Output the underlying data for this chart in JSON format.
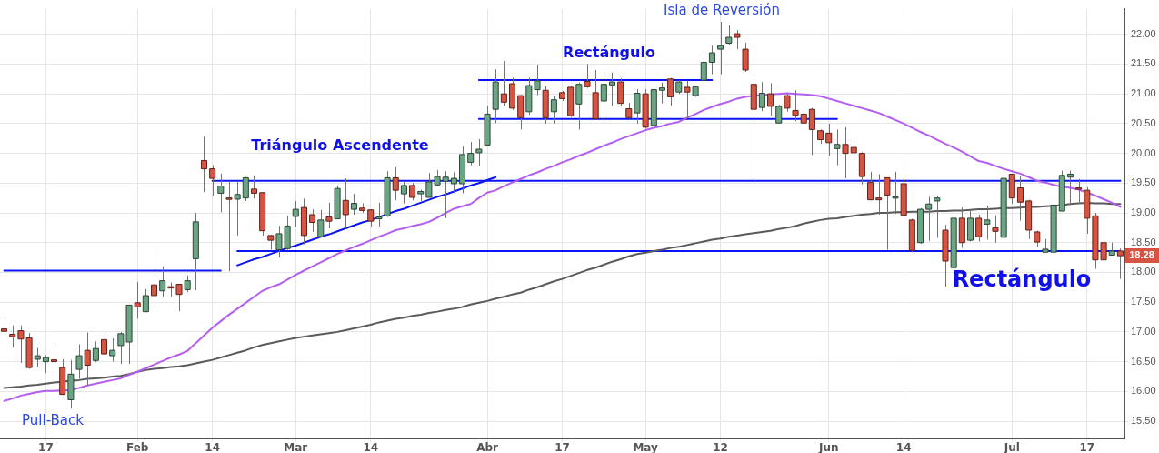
{
  "chart_data": {
    "type": "candlestick",
    "categories": [
      null,
      null,
      null,
      null,
      null,
      "17",
      null,
      null,
      null,
      null,
      null,
      null,
      null,
      null,
      null,
      null,
      "Feb",
      null,
      null,
      null,
      null,
      null,
      null,
      null,
      null,
      "14",
      null,
      null,
      null,
      null,
      null,
      null,
      null,
      null,
      null,
      "Mar",
      null,
      null,
      null,
      null,
      null,
      null,
      null,
      null,
      "14",
      null,
      null,
      null,
      null,
      null,
      null,
      null,
      null,
      null,
      null,
      null,
      null,
      null,
      "Abr",
      null,
      null,
      null,
      null,
      null,
      null,
      null,
      null,
      "17",
      null,
      null,
      null,
      null,
      null,
      null,
      null,
      null,
      null,
      "May",
      null,
      null,
      null,
      null,
      null,
      null,
      null,
      null,
      "12",
      null,
      null,
      null,
      null,
      null,
      null,
      null,
      null,
      null,
      null,
      null,
      null,
      "Jun",
      null,
      null,
      null,
      null,
      null,
      null,
      null,
      null,
      "14",
      null,
      null,
      null,
      null,
      null,
      null,
      null,
      null,
      null,
      null,
      null,
      null,
      "Jul",
      null,
      null,
      null,
      null,
      null,
      null,
      null,
      null,
      "17",
      null,
      null,
      null,
      null
    ],
    "ohlc": [
      [
        17.05,
        17.24,
        16.99,
        17.01
      ],
      [
        16.96,
        17.11,
        16.74,
        16.92
      ],
      [
        17.02,
        17.11,
        16.48,
        16.88
      ],
      [
        16.9,
        16.98,
        16.38,
        16.4
      ],
      [
        16.54,
        16.73,
        16.41,
        16.6
      ],
      [
        16.5,
        16.61,
        16.31,
        16.57
      ],
      [
        16.53,
        16.81,
        16.31,
        16.5
      ],
      [
        16.4,
        16.54,
        15.94,
        15.95
      ],
      [
        15.86,
        16.53,
        15.72,
        16.29
      ],
      [
        16.37,
        16.79,
        16.21,
        16.6
      ],
      [
        16.69,
        16.99,
        16.1,
        16.44
      ],
      [
        16.52,
        16.84,
        16.49,
        16.72
      ],
      [
        16.87,
        16.97,
        16.6,
        16.63
      ],
      [
        16.6,
        16.89,
        16.5,
        16.69
      ],
      [
        16.77,
        17.0,
        16.46,
        16.97
      ],
      [
        16.83,
        17.46,
        16.46,
        17.45
      ],
      [
        17.49,
        17.84,
        17.22,
        17.42
      ],
      [
        17.34,
        17.72,
        17.33,
        17.61
      ],
      [
        17.79,
        18.36,
        17.42,
        17.61
      ],
      [
        17.69,
        18.1,
        17.59,
        17.86
      ],
      [
        17.76,
        17.83,
        17.59,
        17.75
      ],
      [
        17.8,
        17.81,
        17.35,
        17.63
      ],
      [
        17.71,
        17.95,
        17.67,
        17.86
      ],
      [
        18.23,
        19.0,
        17.7,
        18.85
      ],
      [
        19.88,
        20.28,
        19.35,
        19.74
      ],
      [
        19.74,
        19.8,
        19.29,
        19.58
      ],
      [
        19.33,
        19.66,
        19.01,
        19.45
      ],
      [
        19.25,
        19.53,
        18.02,
        19.23
      ],
      [
        19.23,
        19.53,
        18.62,
        19.31
      ],
      [
        19.25,
        19.6,
        19.2,
        19.59
      ],
      [
        19.4,
        19.63,
        19.24,
        19.33
      ],
      [
        19.34,
        19.35,
        18.62,
        18.7
      ],
      [
        18.62,
        18.63,
        18.38,
        18.54
      ],
      [
        18.38,
        18.78,
        18.25,
        18.65
      ],
      [
        18.4,
        18.95,
        18.38,
        18.78
      ],
      [
        18.94,
        19.2,
        18.77,
        19.06
      ],
      [
        19.09,
        19.24,
        18.47,
        18.62
      ],
      [
        18.97,
        19.06,
        18.68,
        18.84
      ],
      [
        18.6,
        19.05,
        18.6,
        18.88
      ],
      [
        18.93,
        19.17,
        18.74,
        18.86
      ],
      [
        18.9,
        19.46,
        18.9,
        19.41
      ],
      [
        19.21,
        19.58,
        18.74,
        18.97
      ],
      [
        19.06,
        19.32,
        18.97,
        19.16
      ],
      [
        19.08,
        19.16,
        19.0,
        19.04
      ],
      [
        19.05,
        19.06,
        18.77,
        18.86
      ],
      [
        18.9,
        19.17,
        18.77,
        18.93
      ],
      [
        18.95,
        19.7,
        18.93,
        19.59
      ],
      [
        19.59,
        19.77,
        19.21,
        19.38
      ],
      [
        19.32,
        19.52,
        19.16,
        19.46
      ],
      [
        19.46,
        19.5,
        19.21,
        19.26
      ],
      [
        19.32,
        19.39,
        19.2,
        19.36
      ],
      [
        19.26,
        19.67,
        19.26,
        19.52
      ],
      [
        19.47,
        19.72,
        19.45,
        19.61
      ],
      [
        19.53,
        19.7,
        18.91,
        19.6
      ],
      [
        19.49,
        19.68,
        19.33,
        19.58
      ],
      [
        19.49,
        20.12,
        19.33,
        19.98
      ],
      [
        19.85,
        20.19,
        19.8,
        20.0
      ],
      [
        20.01,
        20.24,
        19.79,
        20.07
      ],
      [
        20.14,
        20.8,
        20.14,
        20.66
      ],
      [
        20.74,
        21.41,
        20.51,
        21.2
      ],
      [
        21.0,
        21.55,
        20.8,
        20.86
      ],
      [
        21.17,
        21.27,
        20.73,
        20.76
      ],
      [
        20.97,
        20.98,
        20.4,
        20.6
      ],
      [
        20.7,
        21.27,
        20.65,
        21.14
      ],
      [
        21.07,
        21.49,
        20.98,
        21.22
      ],
      [
        21.06,
        21.13,
        20.5,
        20.6
      ],
      [
        20.7,
        20.97,
        20.5,
        20.9
      ],
      [
        21.02,
        21.05,
        20.88,
        20.92
      ],
      [
        21.11,
        21.14,
        20.61,
        20.63
      ],
      [
        20.83,
        21.19,
        20.4,
        21.16
      ],
      [
        21.21,
        21.5,
        21.1,
        21.12
      ],
      [
        21.02,
        21.4,
        20.58,
        20.58
      ],
      [
        20.88,
        21.36,
        20.58,
        21.16
      ],
      [
        21.15,
        21.36,
        20.8,
        21.2
      ],
      [
        21.2,
        21.26,
        20.8,
        20.84
      ],
      [
        20.75,
        20.85,
        20.58,
        20.6
      ],
      [
        20.68,
        21.08,
        20.5,
        21.01
      ],
      [
        21.0,
        21.08,
        20.42,
        20.44
      ],
      [
        20.47,
        21.1,
        20.34,
        21.07
      ],
      [
        21.06,
        21.19,
        20.84,
        21.1
      ],
      [
        21.25,
        21.27,
        20.8,
        20.95
      ],
      [
        21.03,
        21.23,
        21.0,
        21.2
      ],
      [
        21.11,
        21.22,
        20.59,
        21.03
      ],
      [
        20.97,
        21.14,
        20.95,
        21.12
      ],
      [
        21.23,
        21.62,
        21.22,
        21.53
      ],
      [
        21.53,
        21.81,
        21.33,
        21.69
      ],
      [
        21.75,
        22.21,
        21.33,
        21.81
      ],
      [
        21.85,
        22.15,
        21.82,
        21.95
      ],
      [
        22.01,
        22.07,
        21.75,
        21.95
      ],
      [
        21.75,
        21.86,
        21.37,
        21.4
      ],
      [
        21.16,
        21.24,
        19.54,
        20.74
      ],
      [
        20.77,
        21.2,
        20.71,
        21.01
      ],
      [
        21.0,
        21.18,
        20.63,
        20.79
      ],
      [
        20.51,
        20.82,
        20.51,
        20.79
      ],
      [
        20.97,
        21.0,
        20.7,
        20.76
      ],
      [
        20.72,
        21.06,
        20.54,
        20.64
      ],
      [
        20.66,
        20.82,
        20.51,
        20.51
      ],
      [
        20.74,
        20.76,
        19.97,
        20.4
      ],
      [
        20.38,
        20.4,
        20.16,
        20.23
      ],
      [
        20.34,
        20.5,
        19.96,
        20.18
      ],
      [
        20.08,
        20.4,
        19.8,
        20.15
      ],
      [
        20.15,
        20.44,
        19.58,
        20.0
      ],
      [
        20.1,
        20.14,
        19.74,
        20.01
      ],
      [
        20.0,
        20.02,
        19.48,
        19.61
      ],
      [
        19.51,
        19.69,
        19.21,
        19.22
      ],
      [
        19.25,
        19.65,
        18.97,
        19.22
      ],
      [
        19.59,
        19.59,
        18.38,
        19.3
      ],
      [
        19.25,
        19.69,
        18.98,
        19.27
      ],
      [
        19.49,
        19.8,
        18.59,
        18.96
      ],
      [
        18.88,
        18.9,
        18.34,
        18.37
      ],
      [
        18.5,
        19.08,
        18.48,
        19.06
      ],
      [
        19.06,
        19.27,
        18.53,
        19.15
      ],
      [
        19.2,
        19.29,
        18.58,
        19.25
      ],
      [
        18.71,
        18.8,
        17.76,
        18.19
      ],
      [
        18.08,
        18.93,
        18.06,
        18.91
      ],
      [
        18.91,
        19.09,
        18.41,
        18.5
      ],
      [
        18.54,
        19.06,
        18.52,
        18.91
      ],
      [
        18.91,
        18.97,
        18.52,
        18.6
      ],
      [
        18.81,
        19.12,
        18.55,
        18.88
      ],
      [
        18.75,
        18.96,
        18.5,
        18.69
      ],
      [
        18.59,
        19.65,
        18.58,
        19.58
      ],
      [
        19.65,
        19.66,
        19.15,
        19.25
      ],
      [
        19.42,
        19.61,
        18.87,
        19.18
      ],
      [
        19.2,
        19.22,
        18.56,
        18.71
      ],
      [
        18.68,
        18.7,
        18.42,
        18.51
      ],
      [
        18.34,
        18.56,
        18.34,
        18.39
      ],
      [
        18.34,
        19.18,
        18.34,
        19.13
      ],
      [
        19.03,
        19.71,
        19.03,
        19.63
      ],
      [
        19.6,
        19.71,
        19.13,
        19.65
      ],
      [
        19.42,
        19.57,
        19.15,
        19.4
      ],
      [
        19.38,
        19.43,
        18.65,
        18.91
      ],
      [
        18.95,
        19.0,
        18.06,
        18.21
      ],
      [
        18.5,
        18.79,
        18.0,
        18.21
      ],
      [
        18.29,
        18.5,
        18.29,
        18.36
      ],
      [
        18.36,
        18.4,
        17.89,
        18.28
      ]
    ],
    "colors": [
      "#d75442",
      "#d75442",
      "#d75442",
      "#d75442",
      "#6ba583",
      "#6ba583",
      "#d75442",
      "#d75442",
      "#6ba583",
      "#6ba583",
      "#d75442",
      "#6ba583",
      "#d75442",
      "#6ba583",
      "#6ba583",
      "#6ba583",
      "#d75442",
      "#6ba583",
      "#d75442",
      "#6ba583",
      "#d75442",
      "#d75442",
      "#6ba583",
      "#6ba583",
      "#d75442",
      "#d75442",
      "#6ba583",
      "#d75442",
      "#6ba583",
      "#6ba583",
      "#d75442",
      "#d75442",
      "#d75442",
      "#6ba583",
      "#6ba583",
      "#6ba583",
      "#d75442",
      "#d75442",
      "#6ba583",
      "#d75442",
      "#6ba583",
      "#d75442",
      "#6ba583",
      "#d75442",
      "#d75442",
      "#6ba583",
      "#6ba583",
      "#d75442",
      "#6ba583",
      "#d75442",
      "#6ba583",
      "#6ba583",
      "#6ba583",
      "#6ba583",
      "#6ba583",
      "#6ba583",
      "#6ba583",
      "#6ba583",
      "#6ba583",
      "#6ba583",
      "#d75442",
      "#d75442",
      "#d75442",
      "#6ba583",
      "#6ba583",
      "#d75442",
      "#6ba583",
      "#d75442",
      "#d75442",
      "#6ba583",
      "#d75442",
      "#d75442",
      "#6ba583",
      "#6ba583",
      "#d75442",
      "#d75442",
      "#6ba583",
      "#d75442",
      "#6ba583",
      "#6ba583",
      "#d75442",
      "#6ba583",
      "#d75442",
      "#6ba583",
      "#6ba583",
      "#6ba583",
      "#6ba583",
      "#6ba583",
      "#d75442",
      "#d75442",
      "#d75442",
      "#6ba583",
      "#d75442",
      "#6ba583",
      "#d75442",
      "#d75442",
      "#d75442",
      "#d75442",
      "#d75442",
      "#d75442",
      "#6ba583",
      "#d75442",
      "#d75442",
      "#d75442",
      "#d75442",
      "#d75442",
      "#d75442",
      "#6ba583",
      "#d75442",
      "#d75442",
      "#6ba583",
      "#6ba583",
      "#6ba583",
      "#d75442",
      "#6ba583",
      "#d75442",
      "#6ba583",
      "#d75442",
      "#6ba583",
      "#d75442",
      "#6ba583",
      "#d75442",
      "#d75442",
      "#d75442",
      "#d75442",
      "#6ba583",
      "#6ba583",
      "#6ba583",
      "#6ba583",
      "#d75442",
      "#d75442",
      "#d75442",
      "#d75442",
      "#6ba583",
      "#d75442"
    ],
    "series": [
      {
        "type": "line",
        "color": "#b45ef0",
        "values": [
          15.84,
          15.88,
          15.93,
          15.96,
          15.99,
          16.01,
          16.01,
          16.02,
          16.02,
          16.06,
          16.1,
          16.13,
          16.16,
          16.19,
          16.22,
          16.28,
          16.33,
          16.39,
          16.45,
          16.51,
          16.57,
          16.62,
          16.68,
          16.81,
          16.94,
          17.07,
          17.18,
          17.29,
          17.39,
          17.49,
          17.59,
          17.69,
          17.75,
          17.8,
          17.88,
          17.96,
          18.03,
          18.1,
          18.17,
          18.24,
          18.31,
          18.37,
          18.43,
          18.48,
          18.54,
          18.6,
          18.65,
          18.71,
          18.74,
          18.78,
          18.81,
          18.85,
          18.92,
          19.0,
          19.07,
          19.11,
          19.15,
          19.25,
          19.34,
          19.38,
          19.45,
          19.51,
          19.57,
          19.63,
          19.68,
          19.74,
          19.79,
          19.85,
          19.9,
          19.96,
          20.01,
          20.07,
          20.13,
          20.18,
          20.24,
          20.29,
          20.34,
          20.39,
          20.43,
          20.46,
          20.5,
          20.53,
          20.6,
          20.66,
          20.73,
          20.78,
          20.83,
          20.87,
          20.92,
          20.95,
          20.97,
          20.98,
          20.99,
          21.0,
          21.01,
          21.0,
          20.99,
          20.98,
          20.96,
          20.92,
          20.88,
          20.84,
          20.8,
          20.76,
          20.72,
          20.68,
          20.62,
          20.56,
          20.5,
          20.43,
          20.36,
          20.3,
          20.23,
          20.16,
          20.1,
          20.03,
          19.95,
          19.87,
          19.84,
          19.79,
          19.74,
          19.7,
          19.66,
          19.6,
          19.54,
          19.51,
          19.47,
          19.44,
          19.42,
          19.39,
          19.34,
          19.29,
          19.23,
          19.17,
          19.1
        ]
      },
      {
        "type": "line",
        "color": "#5a5a5a",
        "values": [
          16.06,
          16.07,
          16.08,
          16.1,
          16.11,
          16.13,
          16.15,
          16.16,
          16.18,
          16.19,
          16.21,
          16.22,
          16.23,
          16.25,
          16.26,
          16.29,
          16.33,
          16.36,
          16.38,
          16.39,
          16.41,
          16.42,
          16.44,
          16.47,
          16.5,
          16.53,
          16.57,
          16.61,
          16.65,
          16.69,
          16.74,
          16.78,
          16.81,
          16.84,
          16.87,
          16.9,
          16.92,
          16.94,
          16.96,
          16.98,
          17.0,
          17.03,
          17.06,
          17.09,
          17.12,
          17.16,
          17.19,
          17.22,
          17.24,
          17.27,
          17.29,
          17.32,
          17.34,
          17.37,
          17.39,
          17.42,
          17.46,
          17.49,
          17.52,
          17.56,
          17.59,
          17.63,
          17.66,
          17.71,
          17.75,
          17.8,
          17.85,
          17.89,
          17.94,
          17.99,
          18.04,
          18.08,
          18.13,
          18.18,
          18.22,
          18.27,
          18.31,
          18.33,
          18.36,
          18.38,
          18.41,
          18.43,
          18.46,
          18.49,
          18.52,
          18.55,
          18.57,
          18.6,
          18.62,
          18.64,
          18.66,
          18.68,
          18.7,
          18.73,
          18.75,
          18.78,
          18.82,
          18.85,
          18.88,
          18.9,
          18.91,
          18.93,
          18.95,
          18.97,
          18.98,
          19.0,
          19.0,
          19.01,
          19.01,
          19.02,
          19.02,
          19.02,
          19.03,
          19.03,
          19.04,
          19.04,
          19.05,
          19.06,
          19.06,
          19.07,
          19.08,
          19.08,
          19.09,
          19.1,
          19.1,
          19.11,
          19.12,
          19.13,
          19.15,
          19.16,
          19.17,
          19.16,
          19.16,
          19.15,
          19.15
        ]
      },
      {
        "type": "line",
        "color": "#0a14f5",
        "values": [
          18.03,
          18.03,
          18.03,
          18.03,
          18.03,
          18.03,
          18.03,
          18.03,
          18.03,
          18.03,
          18.03,
          18.03,
          18.03,
          18.03,
          18.03,
          18.03,
          18.03,
          18.03,
          18.03,
          18.03,
          18.03,
          18.03,
          18.03,
          18.03,
          18.03,
          18.03,
          18.03,
          null,
          null,
          null,
          null,
          null,
          null,
          null,
          null,
          null,
          null,
          null,
          null,
          null,
          null,
          null,
          null,
          null,
          null,
          null,
          null,
          null,
          null,
          null,
          null,
          null,
          null,
          null,
          null,
          null,
          null,
          null,
          null,
          null,
          null,
          null,
          null,
          null,
          null,
          null,
          null,
          null,
          null,
          null,
          null,
          null,
          null,
          null,
          null,
          null,
          null,
          null,
          null,
          null,
          null,
          null,
          null,
          null,
          null,
          null,
          null,
          null,
          null,
          null,
          null,
          null,
          null,
          null,
          null,
          null,
          null,
          null,
          null,
          null,
          null,
          null,
          null,
          null,
          null,
          null,
          null,
          null,
          null,
          null,
          null,
          null,
          null,
          null,
          null,
          null,
          null,
          null,
          null,
          null,
          null,
          null,
          null,
          null,
          null,
          null,
          null,
          null,
          null,
          null,
          null,
          null,
          null,
          null,
          null
        ]
      },
      {
        "type": "line",
        "color": "#0a14f5",
        "values": [
          null,
          null,
          null,
          null,
          null,
          null,
          null,
          null,
          null,
          null,
          null,
          null,
          null,
          null,
          null,
          null,
          null,
          null,
          null,
          null,
          null,
          null,
          null,
          null,
          null,
          19.54,
          19.54,
          19.54,
          19.54,
          19.54,
          19.54,
          19.54,
          19.54,
          19.54,
          19.54,
          19.54,
          19.54,
          19.54,
          19.54,
          19.54,
          19.54,
          19.54,
          19.54,
          19.54,
          19.54,
          19.54,
          19.54,
          19.54,
          19.54,
          19.54,
          19.54,
          19.54,
          19.54,
          19.54,
          19.54,
          19.54,
          19.54,
          19.54,
          19.54,
          19.54,
          19.54,
          19.54,
          19.54,
          19.54,
          19.54,
          19.54,
          19.54,
          19.54,
          19.54,
          19.54,
          19.54,
          19.54,
          19.54,
          19.54,
          19.54,
          19.54,
          19.54,
          19.54,
          19.54,
          19.54,
          19.54,
          19.54,
          19.54,
          19.54,
          19.54,
          19.54,
          19.54,
          19.54,
          19.54,
          19.54,
          19.54,
          19.54,
          19.54,
          19.54,
          19.54,
          19.54,
          19.54,
          19.54,
          19.54,
          19.54,
          19.54,
          19.54,
          19.54,
          19.54,
          19.54,
          19.54,
          19.54,
          19.54,
          19.54,
          19.54,
          19.54,
          19.54,
          19.54,
          19.54,
          19.54,
          19.54,
          19.54,
          19.54,
          19.54,
          19.54,
          19.54,
          19.54,
          19.54,
          19.54,
          19.54,
          19.54,
          19.54,
          19.54,
          19.54,
          19.54,
          19.54,
          19.54,
          19.54,
          19.54,
          19.54
        ]
      },
      {
        "type": "line",
        "color": "#0a14f5",
        "values": [
          null,
          null,
          null,
          null,
          null,
          null,
          null,
          null,
          null,
          null,
          null,
          null,
          null,
          null,
          null,
          null,
          null,
          null,
          null,
          null,
          null,
          null,
          null,
          null,
          null,
          null,
          null,
          null,
          18.36,
          18.36,
          18.36,
          18.36,
          18.36,
          18.36,
          18.36,
          18.36,
          18.36,
          18.36,
          18.36,
          18.36,
          18.36,
          18.36,
          18.36,
          18.36,
          18.36,
          18.36,
          18.36,
          18.36,
          18.36,
          18.36,
          18.36,
          18.36,
          18.36,
          18.36,
          18.36,
          18.36,
          18.36,
          18.36,
          18.36,
          18.36,
          18.36,
          18.36,
          18.36,
          18.36,
          18.36,
          18.36,
          18.36,
          18.36,
          18.36,
          18.36,
          18.36,
          18.36,
          18.36,
          18.36,
          18.36,
          18.36,
          18.36,
          18.36,
          18.36,
          18.36,
          18.36,
          18.36,
          18.36,
          18.36,
          18.36,
          18.36,
          18.36,
          18.36,
          18.36,
          18.36,
          18.36,
          18.36,
          18.36,
          18.36,
          18.36,
          18.36,
          18.36,
          18.36,
          18.36,
          18.36,
          18.36,
          18.36,
          18.36,
          18.36,
          18.36,
          18.36,
          18.36,
          18.36,
          18.36,
          18.36,
          18.36,
          18.36,
          18.36,
          18.36,
          18.36,
          18.36,
          18.36,
          18.36,
          18.36,
          18.36,
          18.36,
          18.36,
          18.36,
          18.36,
          18.36,
          18.36,
          18.36,
          18.36,
          18.36,
          18.36,
          18.36,
          18.36,
          18.36,
          18.36,
          18.36
        ]
      },
      {
        "type": "line",
        "color": "#0a14f5",
        "values": [
          null,
          null,
          null,
          null,
          null,
          null,
          null,
          null,
          null,
          null,
          null,
          null,
          null,
          null,
          null,
          null,
          null,
          null,
          null,
          null,
          null,
          null,
          null,
          null,
          null,
          null,
          null,
          null,
          18.12,
          18.17,
          18.22,
          18.26,
          18.31,
          18.36,
          18.41,
          18.45,
          18.5,
          18.55,
          18.6,
          18.64,
          18.69,
          18.74,
          18.79,
          18.84,
          18.88,
          18.93,
          18.98,
          19.03,
          19.07,
          19.12,
          19.17,
          19.22,
          19.27,
          19.31,
          19.36,
          19.41,
          19.46,
          19.5,
          19.55,
          19.6,
          null,
          null,
          null,
          null,
          null,
          null,
          null,
          null,
          null,
          null,
          null,
          null,
          null,
          null,
          null,
          null,
          null,
          null,
          null,
          null,
          null,
          null,
          null,
          null,
          null,
          null,
          null,
          null,
          null,
          null,
          null,
          null,
          null,
          null,
          null,
          null,
          null,
          null,
          null,
          null,
          null,
          null,
          null,
          null,
          null,
          null,
          null,
          null,
          null,
          null,
          null,
          null,
          null,
          null,
          null,
          null,
          null,
          null,
          null,
          null,
          null,
          null,
          null,
          null,
          null,
          null,
          null,
          null,
          null,
          null,
          null,
          null,
          null,
          null,
          null
        ]
      },
      {
        "type": "line",
        "color": "#0a14f5",
        "values": [
          null,
          null,
          null,
          null,
          null,
          null,
          null,
          null,
          null,
          null,
          null,
          null,
          null,
          null,
          null,
          null,
          null,
          null,
          null,
          null,
          null,
          null,
          null,
          null,
          null,
          null,
          null,
          null,
          null,
          null,
          null,
          null,
          null,
          null,
          null,
          null,
          null,
          null,
          null,
          null,
          null,
          null,
          null,
          null,
          null,
          null,
          null,
          null,
          null,
          null,
          null,
          null,
          null,
          null,
          null,
          null,
          null,
          21.23,
          21.23,
          21.23,
          21.23,
          21.23,
          21.23,
          21.23,
          21.23,
          21.23,
          21.23,
          21.23,
          21.23,
          21.23,
          21.23,
          21.23,
          21.23,
          21.23,
          21.23,
          21.23,
          21.23,
          21.23,
          21.23,
          21.23,
          21.23,
          21.23,
          21.23,
          21.23,
          21.23,
          21.23,
          null,
          null,
          null,
          null,
          null,
          null,
          null,
          null,
          null,
          null,
          null,
          null,
          null,
          null,
          null,
          null,
          null,
          null,
          null,
          null,
          null,
          null,
          null,
          null,
          null,
          null,
          null,
          null,
          null,
          null,
          null,
          null,
          null,
          null,
          null,
          null,
          null,
          null,
          null,
          null,
          null,
          null,
          null,
          null,
          null,
          null,
          null,
          null,
          null
        ]
      },
      {
        "type": "line",
        "color": "#0a14f5",
        "values": [
          null,
          null,
          null,
          null,
          null,
          null,
          null,
          null,
          null,
          null,
          null,
          null,
          null,
          null,
          null,
          null,
          null,
          null,
          null,
          null,
          null,
          null,
          null,
          null,
          null,
          null,
          null,
          null,
          null,
          null,
          null,
          null,
          null,
          null,
          null,
          null,
          null,
          null,
          null,
          null,
          null,
          null,
          null,
          null,
          null,
          null,
          null,
          null,
          null,
          null,
          null,
          null,
          null,
          null,
          null,
          null,
          null,
          20.58,
          20.58,
          20.58,
          20.58,
          20.58,
          20.58,
          20.58,
          20.58,
          20.58,
          20.58,
          20.58,
          20.58,
          20.58,
          20.58,
          20.58,
          20.58,
          20.58,
          20.58,
          20.58,
          20.58,
          20.58,
          20.58,
          20.58,
          20.58,
          20.58,
          20.58,
          20.58,
          20.58,
          20.58,
          20.58,
          20.58,
          20.58,
          20.58,
          20.58,
          20.58,
          20.58,
          20.58,
          20.58,
          20.58,
          20.58,
          20.58,
          20.58,
          20.58,
          20.58,
          null,
          null,
          null,
          null,
          null,
          null,
          null,
          null,
          null,
          null,
          null,
          null,
          null,
          null,
          null,
          null,
          null,
          null,
          null,
          null,
          null,
          null,
          null,
          null,
          null,
          null,
          null,
          null,
          null,
          null,
          null,
          null,
          null,
          null
        ]
      }
    ],
    "ylim": [
      15.21,
      22.43
    ],
    "yticks": [
      {
        "value": 15.5,
        "label": "15.50"
      },
      {
        "value": 16,
        "label": "16.00"
      },
      {
        "value": 16.5,
        "label": "16.50"
      },
      {
        "value": 17,
        "label": "17.00"
      },
      {
        "value": 17.5,
        "label": "17.50"
      },
      {
        "value": 18,
        "label": "18.00"
      },
      {
        "value": 18.5,
        "label": "18.50"
      },
      {
        "value": 19,
        "label": "19.00"
      },
      {
        "value": 19.5,
        "label": "19.50"
      },
      {
        "value": 20,
        "label": "20.00"
      },
      {
        "value": 20.5,
        "label": "20.50"
      },
      {
        "value": 21,
        "label": "21.00"
      },
      {
        "value": 21.5,
        "label": "21.50"
      },
      {
        "value": 22,
        "label": "22.00"
      }
    ],
    "grid": true,
    "marker": "none",
    "annotations": [
      "Isla de Reversión",
      "Rectángulo",
      "Triángulo Ascendente",
      "Rectángulo",
      "Pull-Back",
      "18.28"
    ]
  }
}
